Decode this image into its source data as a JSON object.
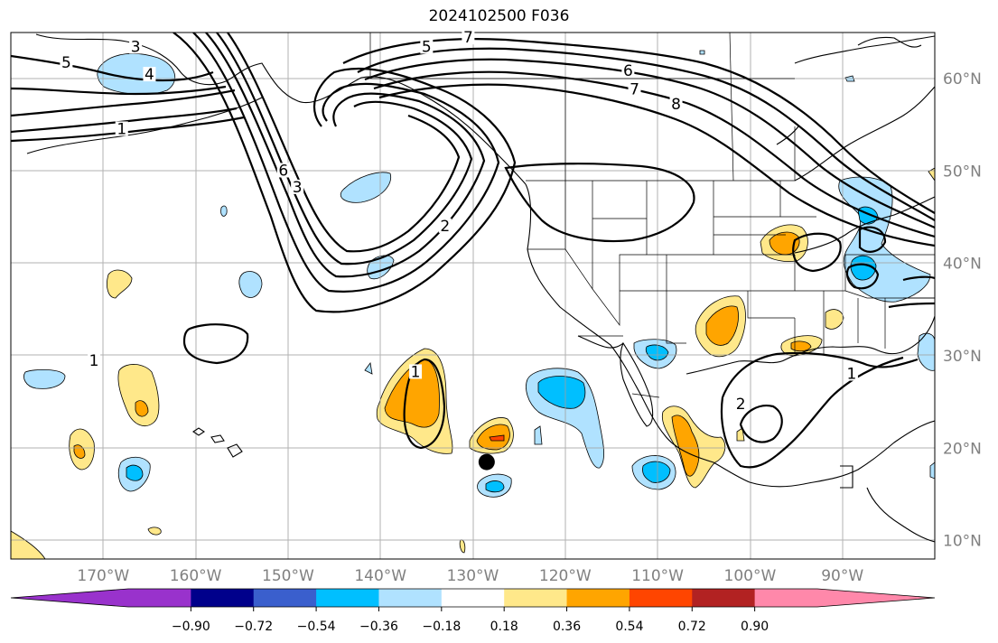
{
  "title": "2024102500 F036",
  "chart_data": {
    "type": "map",
    "projection": "PlateCarree",
    "extent": {
      "lon": [
        -180,
        -80
      ],
      "lat": [
        8,
        65
      ]
    },
    "lat_ticks": [
      {
        "value": 60,
        "label": "60°N"
      },
      {
        "value": 50,
        "label": "50°N"
      },
      {
        "value": 40,
        "label": "40°N"
      },
      {
        "value": 30,
        "label": "30°N"
      },
      {
        "value": 20,
        "label": "20°N"
      },
      {
        "value": 10,
        "label": "10°N"
      }
    ],
    "lon_ticks": [
      {
        "value": -170,
        "label": "170°W"
      },
      {
        "value": -160,
        "label": "160°W"
      },
      {
        "value": -150,
        "label": "150°W"
      },
      {
        "value": -140,
        "label": "140°W"
      },
      {
        "value": -130,
        "label": "130°W"
      },
      {
        "value": -120,
        "label": "120°W"
      },
      {
        "value": -110,
        "label": "110°W"
      },
      {
        "value": -100,
        "label": "100°W"
      },
      {
        "value": -90,
        "label": "90°W"
      }
    ],
    "colorbar": {
      "extend": "both",
      "bins": [
        {
          "color": "#9932cc",
          "role": "under"
        },
        {
          "color": "#9932cc"
        },
        {
          "color": "#00008b"
        },
        {
          "color": "#3a5fcd"
        },
        {
          "color": "#00bfff"
        },
        {
          "color": "#b0e2ff"
        },
        {
          "color": "#ffffff"
        },
        {
          "color": "#ffe88a"
        },
        {
          "color": "#ffa500"
        },
        {
          "color": "#ff4500"
        },
        {
          "color": "#b22222"
        },
        {
          "color": "#ff88aa"
        },
        {
          "color": "#ff88aa",
          "role": "over"
        }
      ],
      "ticks": [
        {
          "value": -0.9,
          "label": "−0.90"
        },
        {
          "value": -0.72,
          "label": "−0.72"
        },
        {
          "value": -0.54,
          "label": "−0.54"
        },
        {
          "value": -0.36,
          "label": "−0.36"
        },
        {
          "value": -0.18,
          "label": "−0.18"
        },
        {
          "value": 0.18,
          "label": "0.18"
        },
        {
          "value": 0.36,
          "label": "0.36"
        },
        {
          "value": 0.54,
          "label": "0.54"
        },
        {
          "value": 0.72,
          "label": "0.72"
        },
        {
          "value": 0.9,
          "label": "0.90"
        }
      ]
    },
    "contour_labels": [
      {
        "text": "5",
        "lon": -174,
        "lat": 61.5
      },
      {
        "text": "4",
        "lon": -165,
        "lat": 60.2
      },
      {
        "text": "3",
        "lon": -166.5,
        "lat": 63.2
      },
      {
        "text": "1",
        "lon": -168,
        "lat": 54.3
      },
      {
        "text": "6",
        "lon": -150.5,
        "lat": 49.8
      },
      {
        "text": "3",
        "lon": -149,
        "lat": 48.0
      },
      {
        "text": "2",
        "lon": -133,
        "lat": 43.8
      },
      {
        "text": "1",
        "lon": -171,
        "lat": 29.2
      },
      {
        "text": "1",
        "lon": -136.2,
        "lat": 28.0
      },
      {
        "text": "1",
        "lon": -89,
        "lat": 27.8
      },
      {
        "text": "2",
        "lon": -101,
        "lat": 24.5
      },
      {
        "text": "6",
        "lon": -113.2,
        "lat": 60.6
      },
      {
        "text": "7",
        "lon": -112.5,
        "lat": 58.6
      },
      {
        "text": "8",
        "lon": -108,
        "lat": 57.0
      },
      {
        "text": "5",
        "lon": -135,
        "lat": 63.2
      },
      {
        "text": "7",
        "lon": -130.5,
        "lat": 64.2
      }
    ],
    "marker": {
      "lon": -128.5,
      "lat": 18.5,
      "symbol": "filled-circle",
      "color": "#000000"
    }
  }
}
